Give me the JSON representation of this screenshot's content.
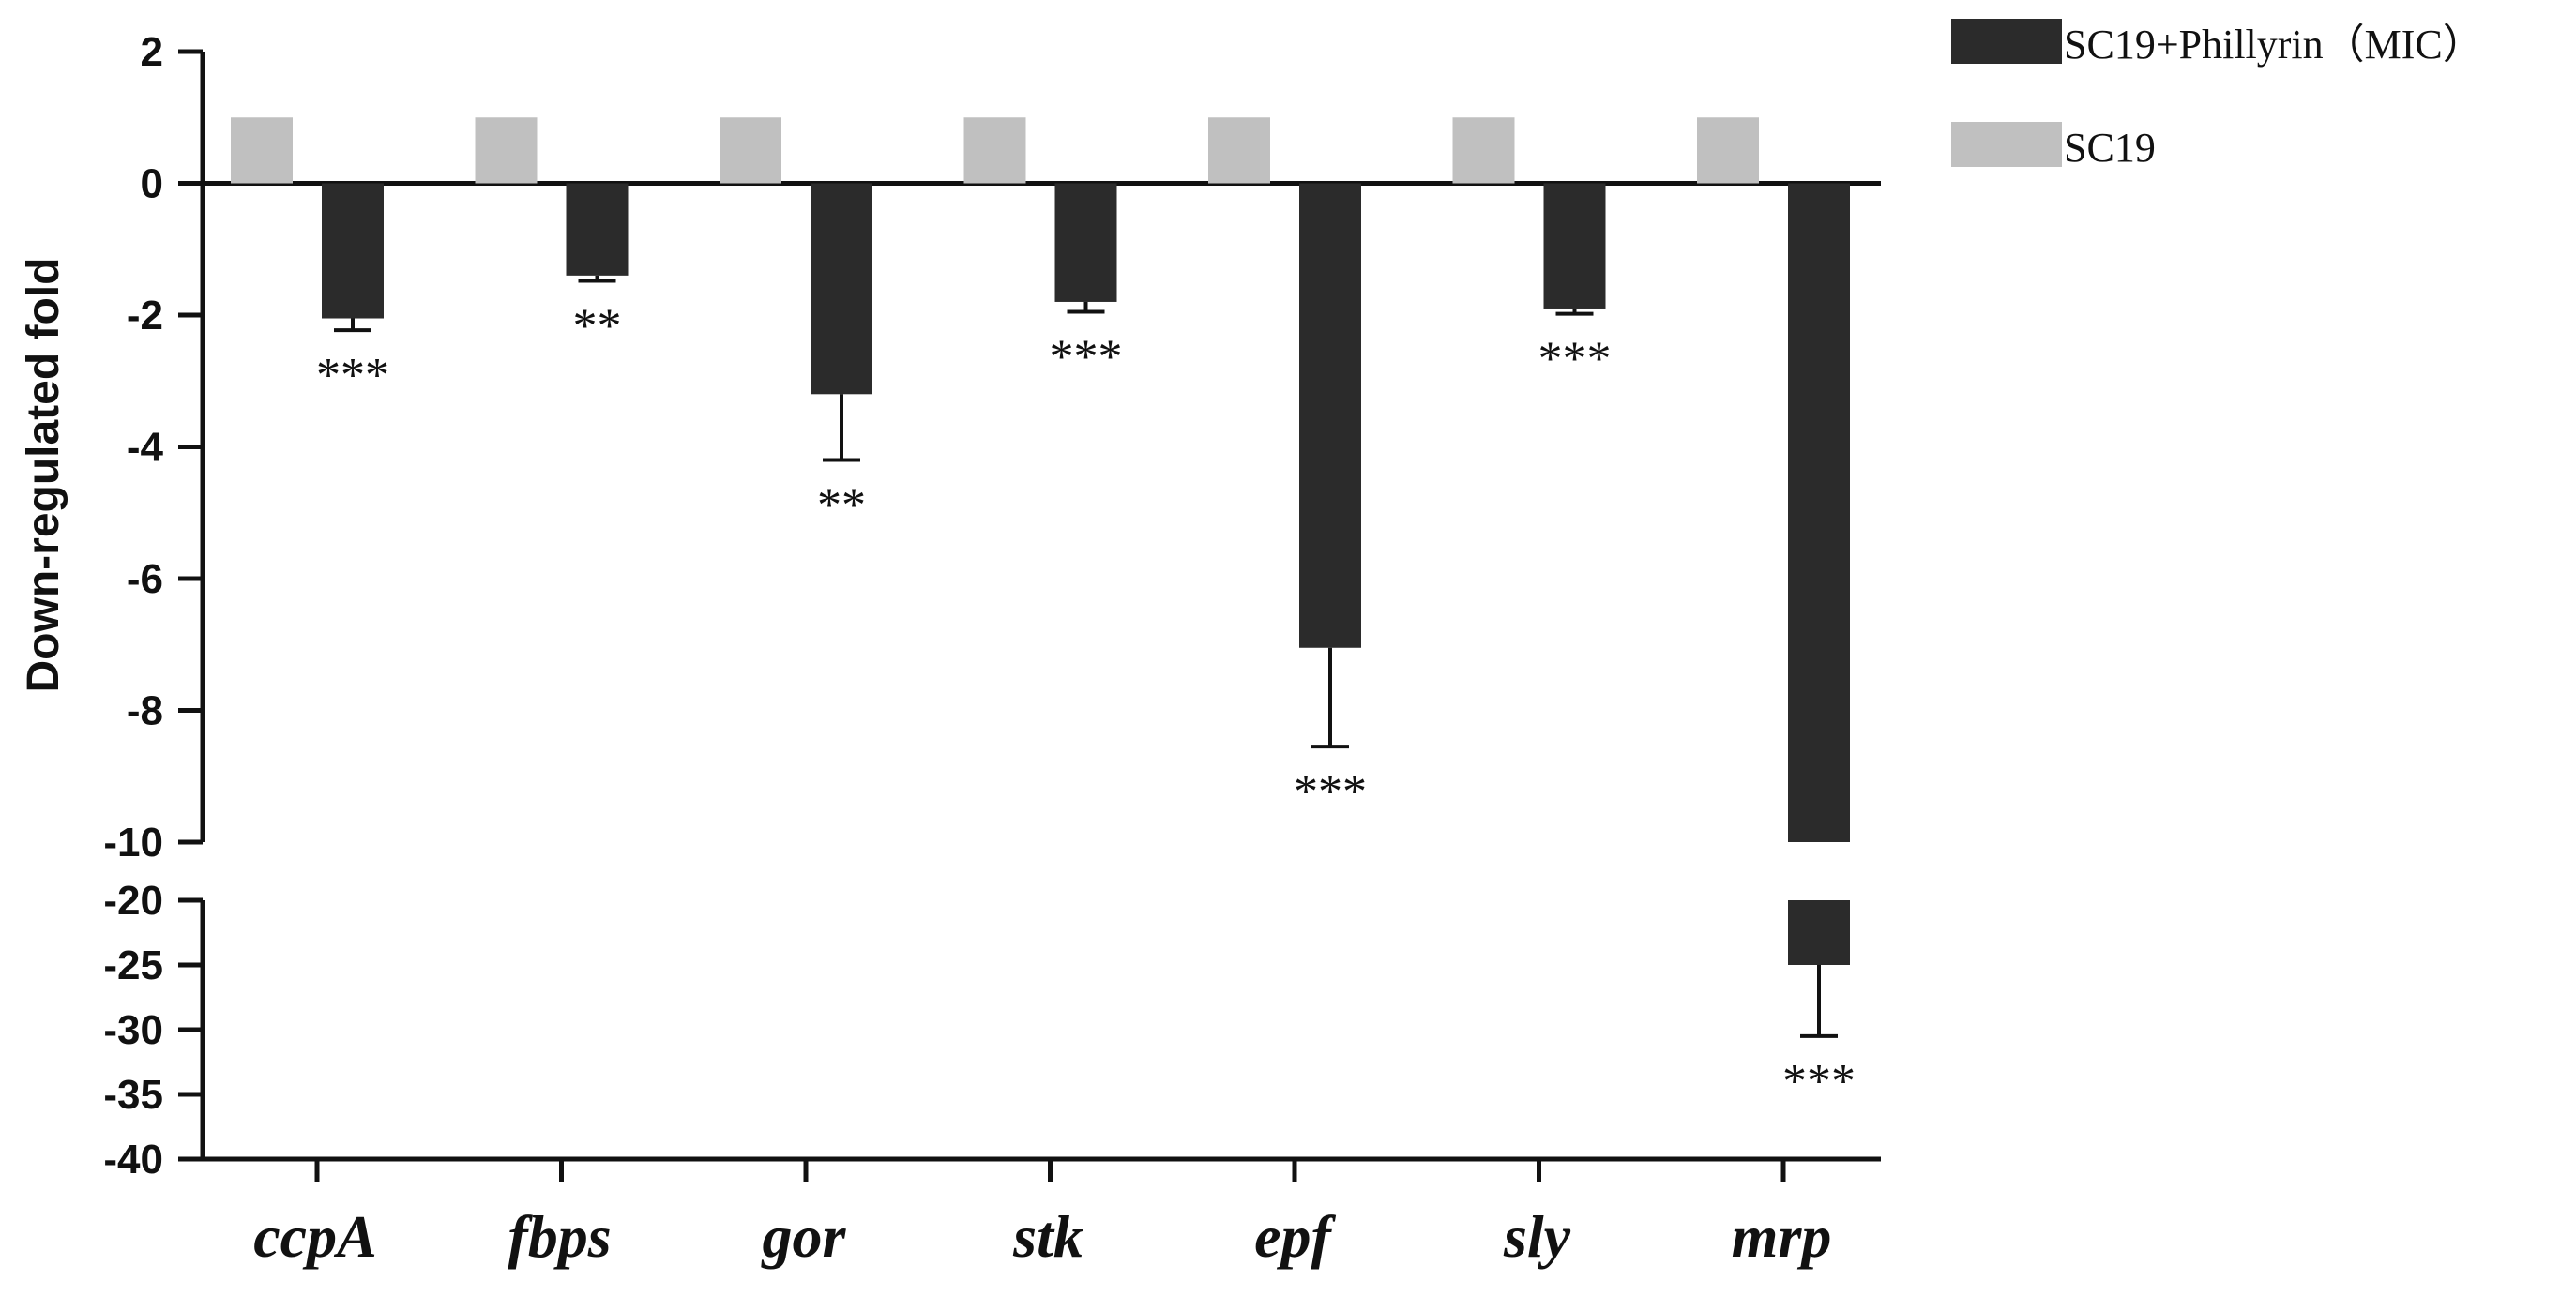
{
  "chart_data": {
    "type": "bar",
    "categories": [
      "ccpA",
      "fbps",
      "gor",
      "stk",
      "epf",
      "sly",
      "mrp"
    ],
    "series": [
      {
        "name": "SC19",
        "color": "#c0c0c0",
        "values": [
          1,
          1,
          1,
          1,
          1,
          1,
          1
        ]
      },
      {
        "name": "SC19+Phillyrin（MIC）",
        "color": "#2b2b2b",
        "values": [
          -2.05,
          -1.4,
          -3.2,
          -1.8,
          -7.05,
          -1.9,
          -25
        ],
        "error": [
          0.18,
          0.08,
          1.0,
          0.15,
          1.5,
          0.08,
          5.5
        ]
      }
    ],
    "significance": [
      "***",
      "**",
      "**",
      "***",
      "***",
      "***",
      "***"
    ],
    "ylabel": "Down-regulated fold",
    "xlabel": "",
    "axis_segments": [
      {
        "range": [
          -10,
          2
        ],
        "ticks": [
          "2",
          "0",
          "-2",
          "-4",
          "-6",
          "-8",
          "-10"
        ]
      },
      {
        "range": [
          -40,
          -20
        ],
        "ticks": [
          "-20",
          "-25",
          "-30",
          "-35",
          "-40"
        ]
      }
    ],
    "legend_position": "top-right"
  }
}
